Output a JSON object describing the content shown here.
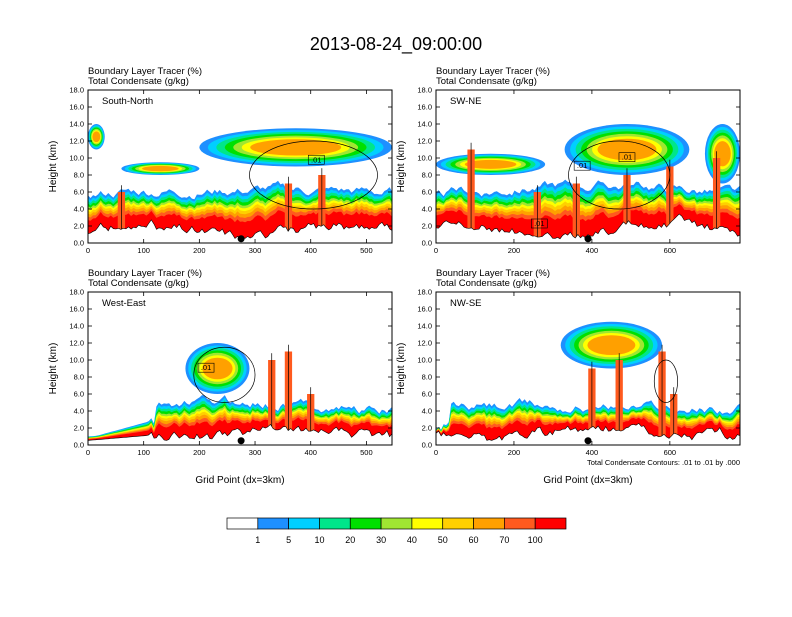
{
  "title": "2013-08-24_09:00:00",
  "colors": {
    "levels": [
      "#ffffff",
      "#1e90ff",
      "#00cfff",
      "#00e68a",
      "#00e000",
      "#a0e632",
      "#ffff00",
      "#ffd000",
      "#ffa000",
      "#ff5a1e",
      "#ff0000"
    ],
    "contour": "#000000"
  },
  "chart_data": {
    "type": "heatmap",
    "panels": [
      {
        "label": "South-North",
        "line1": "Boundary Layer Tracer   (%)",
        "line2": "Total Condensate   (g/kg)",
        "ylabel": "Height (km)",
        "xlabel": "",
        "xlim": [
          0,
          546
        ],
        "ylim": [
          0,
          18
        ],
        "xticks": [
          "0",
          "100",
          "200",
          "300",
          "400",
          "500"
        ],
        "yticks": [
          "0.0",
          "2.0",
          "4.0",
          "6.0",
          "8.0",
          "10.0",
          "12.0",
          "14.0",
          "16.0",
          "18.0"
        ],
        "marker_x": 275,
        "contour_labels": [
          {
            "text": ".01",
            "x": 410,
            "y": 9.5
          }
        ],
        "cloud_top": 13.5,
        "note": ""
      },
      {
        "label": "SW-NE",
        "line1": "Boundary Layer Tracer   (%)",
        "line2": "Total Condensate   (g/kg)",
        "ylabel": "Height (km)",
        "xlabel": "",
        "xlim": [
          0,
          780
        ],
        "ylim": [
          0,
          18
        ],
        "xticks": [
          "0",
          "200",
          "400",
          "600"
        ],
        "yticks": [
          "0.0",
          "2.0",
          "4.0",
          "6.0",
          "8.0",
          "10.0",
          "12.0",
          "14.0",
          "16.0",
          "18.0"
        ],
        "marker_x": 390,
        "contour_labels": [
          {
            "text": ".01",
            "x": 375,
            "y": 8.8
          },
          {
            "text": ".01",
            "x": 490,
            "y": 9.8
          },
          {
            "text": ".01",
            "x": 265,
            "y": 2.0
          }
        ],
        "cloud_top": 14,
        "note": ""
      },
      {
        "label": "West-East",
        "line1": "Boundary Layer Tracer   (%)",
        "line2": "Total Condensate   (g/kg)",
        "ylabel": "Height (km)",
        "xlabel": "Grid Point (dx=3km)",
        "xlim": [
          0,
          546
        ],
        "ylim": [
          0,
          18
        ],
        "xticks": [
          "0",
          "100",
          "200",
          "300",
          "400",
          "500"
        ],
        "yticks": [
          "0.0",
          "2.0",
          "4.0",
          "6.0",
          "8.0",
          "10.0",
          "12.0",
          "14.0",
          "16.0",
          "18.0"
        ],
        "marker_x": 275,
        "contour_labels": [
          {
            "text": ".01",
            "x": 212,
            "y": 8.8
          }
        ],
        "cloud_top": 12,
        "note": ""
      },
      {
        "label": "NW-SE",
        "line1": "Boundary Layer Tracer   (%)",
        "line2": "Total Condensate   (g/kg)",
        "ylabel": "Height (km)",
        "xlabel": "Grid Point (dx=3km)",
        "xlim": [
          0,
          780
        ],
        "ylim": [
          0,
          18
        ],
        "xticks": [
          "0",
          "200",
          "400",
          "600"
        ],
        "yticks": [
          "0.0",
          "2.0",
          "4.0",
          "6.0",
          "8.0",
          "10.0",
          "12.0",
          "14.0",
          "16.0",
          "18.0"
        ],
        "marker_x": 390,
        "contour_labels": [],
        "cloud_top": 14.5,
        "note": "Total Condensate Contours: .01 to .01 by .000"
      }
    ],
    "colorbar": {
      "labels": [
        "1",
        "5",
        "10",
        "20",
        "30",
        "40",
        "50",
        "60",
        "70",
        "100"
      ]
    }
  }
}
